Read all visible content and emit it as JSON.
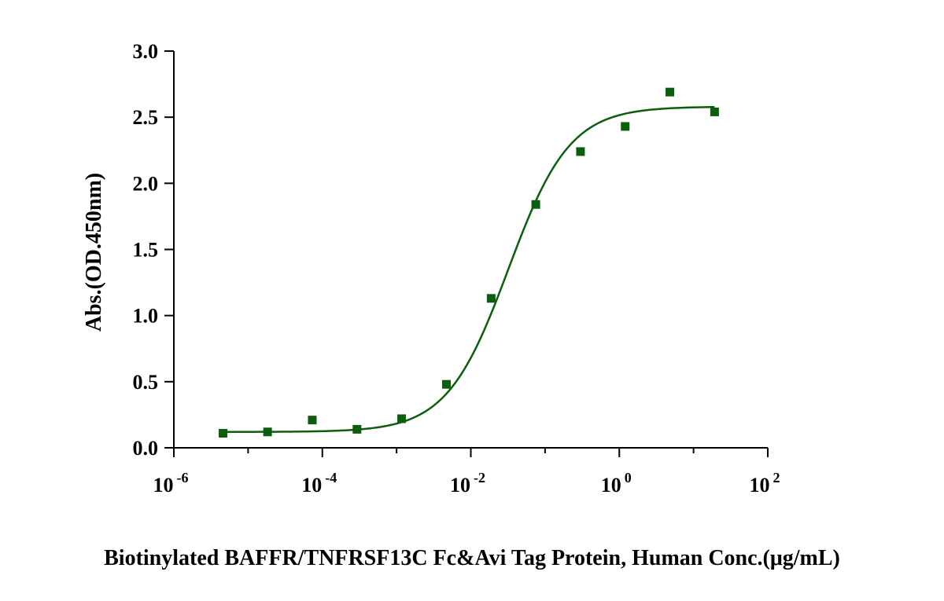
{
  "chart_data": {
    "type": "scatter",
    "title": "",
    "xlabel": "Biotinylated BAFFR/TNFRSF13C Fc&Avi Tag Protein, Human  Conc.(μg/mL)",
    "ylabel": "Abs.(OD.450nm)",
    "x_scale": "log",
    "xlim": [
      1e-06,
      100
    ],
    "ylim": [
      0,
      3.0
    ],
    "x_ticks": [
      {
        "base": "10",
        "exp": "-6",
        "value": 1e-06
      },
      {
        "base": "10",
        "exp": "-4",
        "value": 0.0001
      },
      {
        "base": "10",
        "exp": "-2",
        "value": 0.01
      },
      {
        "base": "10",
        "exp": "0",
        "value": 1
      },
      {
        "base": "10",
        "exp": "2",
        "value": 100
      }
    ],
    "y_ticks": [
      "0.0",
      "0.5",
      "1.0",
      "1.5",
      "2.0",
      "2.5",
      "3.0"
    ],
    "grid": false,
    "series": [
      {
        "color": "#0b5e0b",
        "marker": "square",
        "fit": "4PL",
        "x": [
          4.6e-06,
          1.83e-05,
          7.32e-05,
          0.000293,
          0.00117,
          0.00469,
          0.0188,
          0.075,
          0.3,
          1.2,
          4.8,
          19.2
        ],
        "y": [
          0.11,
          0.12,
          0.21,
          0.14,
          0.22,
          0.48,
          1.13,
          1.84,
          2.24,
          2.43,
          2.69,
          2.54
        ]
      }
    ]
  }
}
